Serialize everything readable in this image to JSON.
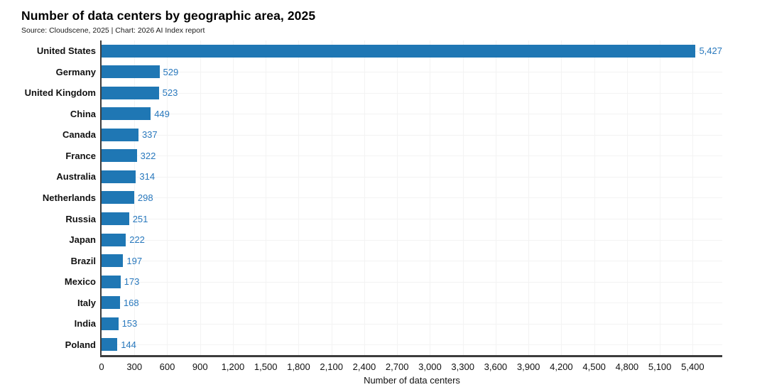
{
  "title": "Number of data centers by geographic area, 2025",
  "subtitle": "Source: Cloudscene, 2025 | Chart: 2026 AI Index report",
  "colors": {
    "bar": "#1f77b4",
    "value_label": "#2878bd",
    "axis_spine": "#3c3c3c",
    "grid": "#f3f3f3",
    "text": "#111111"
  },
  "chart_data": {
    "type": "bar",
    "orientation": "horizontal",
    "title": "Number of data centers by geographic area, 2025",
    "subtitle": "Source: Cloudscene, 2025 | Chart: 2026 AI Index report",
    "categories": [
      "United States",
      "Germany",
      "United Kingdom",
      "China",
      "Canada",
      "France",
      "Australia",
      "Netherlands",
      "Russia",
      "Japan",
      "Brazil",
      "Mexico",
      "Italy",
      "India",
      "Poland"
    ],
    "values": [
      5427,
      529,
      523,
      449,
      337,
      322,
      314,
      298,
      251,
      222,
      197,
      173,
      168,
      153,
      144
    ],
    "value_labels": [
      "5,427",
      "529",
      "523",
      "449",
      "337",
      "322",
      "314",
      "298",
      "251",
      "222",
      "197",
      "173",
      "168",
      "153",
      "144"
    ],
    "xlabel": "Number of data centers",
    "ylabel": "",
    "xlim": [
      0,
      5670
    ],
    "xticks": [
      0,
      300,
      600,
      900,
      1200,
      1500,
      1800,
      2100,
      2400,
      2700,
      3000,
      3300,
      3600,
      3900,
      4200,
      4500,
      4800,
      5100,
      5400
    ],
    "xtick_labels": [
      "0",
      "300",
      "600",
      "900",
      "1,200",
      "1,500",
      "1,800",
      "2,100",
      "2,400",
      "2,700",
      "3,000",
      "3,300",
      "3,600",
      "3,900",
      "4,200",
      "4,500",
      "4,800",
      "5,100",
      "5,400"
    ],
    "grid": true,
    "legend": "none",
    "bar_color": "#1f77b4"
  }
}
